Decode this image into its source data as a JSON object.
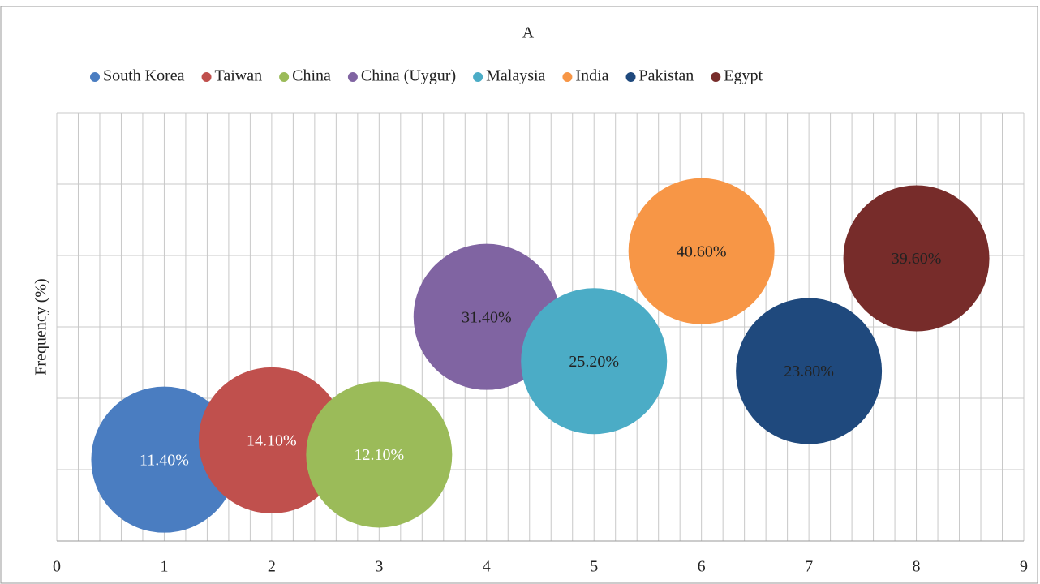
{
  "chart_data": {
    "type": "bubble",
    "title": "A",
    "y_label": "Frequency  (%)",
    "xlim": [
      0,
      9
    ],
    "xticks": [
      0,
      1,
      2,
      3,
      4,
      5,
      6,
      7,
      8,
      9
    ],
    "ylim": [
      0,
      60
    ],
    "yticks": [
      0,
      10,
      20,
      30,
      40,
      50,
      60
    ],
    "grid": true,
    "legend": "top",
    "series": [
      {
        "name": "South Korea",
        "color": "#4a7dc1",
        "label_color": "#ffffff",
        "x": [
          1
        ],
        "values": [
          11.4
        ],
        "value_labels": [
          "11.40%"
        ]
      },
      {
        "name": "Taiwan",
        "color": "#c0504d",
        "label_color": "#ffffff",
        "x": [
          2
        ],
        "values": [
          14.1
        ],
        "value_labels": [
          "14.10%"
        ]
      },
      {
        "name": "China",
        "color": "#9bbb59",
        "label_color": "#ffffff",
        "x": [
          3
        ],
        "values": [
          12.1
        ],
        "value_labels": [
          "12.10%"
        ]
      },
      {
        "name": "China (Uygur)",
        "color": "#8064a2",
        "label_color": "#222222",
        "x": [
          4
        ],
        "values": [
          31.4
        ],
        "value_labels": [
          "31.40%"
        ]
      },
      {
        "name": "Malaysia",
        "color": "#4bacc6",
        "label_color": "#222222",
        "x": [
          5
        ],
        "values": [
          25.2
        ],
        "value_labels": [
          "25.20%"
        ]
      },
      {
        "name": "India",
        "color": "#f79646",
        "label_color": "#222222",
        "x": [
          6
        ],
        "values": [
          40.6
        ],
        "value_labels": [
          "40.60%"
        ]
      },
      {
        "name": "Pakistan",
        "color": "#1f497d",
        "label_color": "#222222",
        "x": [
          7
        ],
        "values": [
          23.8
        ],
        "value_labels": [
          "23.80%"
        ]
      },
      {
        "name": "Egypt",
        "color": "#772c2a",
        "label_color": "#222222",
        "x": [
          8
        ],
        "values": [
          39.6
        ],
        "value_labels": [
          "39.60%"
        ]
      }
    ]
  }
}
